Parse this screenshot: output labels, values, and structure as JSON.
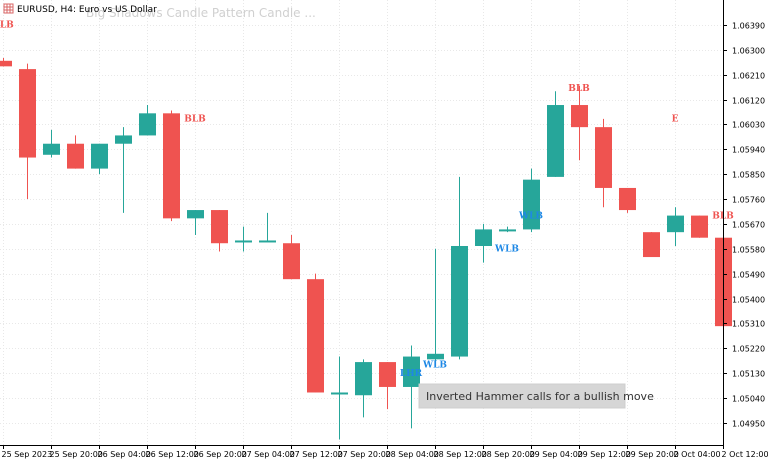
{
  "window": {
    "symbol_label": "EURUSD, H4:  Euro vs US Dollar",
    "watermark": "Big Shadows Candle Pattern Candle ..."
  },
  "tooltip": {
    "text": "Inverted Hammer calls for a bullish move"
  },
  "colors": {
    "bull": "#26a69a",
    "bear": "#ef5350",
    "grid": "#e8e8e8",
    "axis": "#000000",
    "text": "#000000",
    "label_bear": "#ef5350",
    "label_bull": "#1e88e5",
    "tooltip_bg": "#d6d6d6",
    "watermark": "#d0d0d0"
  },
  "chart_data": {
    "type": "candlestick",
    "title": "EURUSD, H4:  Euro vs US Dollar",
    "yaxis": {
      "range": [
        1.0487,
        1.0648
      ],
      "ticks": [
        "1.06390",
        "1.06300",
        "1.06210",
        "1.06120",
        "1.06030",
        "1.05940",
        "1.05850",
        "1.05760",
        "1.05670",
        "1.05580",
        "1.05490",
        "1.05400",
        "1.05310",
        "1.05220",
        "1.05130",
        "1.05040",
        "1.04950"
      ],
      "side": "right"
    },
    "xaxis": {
      "ticks": [
        {
          "label": "25 Sep 2023",
          "index": 0
        },
        {
          "label": "25 Sep 20:00",
          "index": 2
        },
        {
          "label": "26 Sep 04:00",
          "index": 4
        },
        {
          "label": "26 Sep 12:00",
          "index": 6
        },
        {
          "label": "26 Sep 20:00",
          "index": 8
        },
        {
          "label": "27 Sep 04:00",
          "index": 10
        },
        {
          "label": "27 Sep 12:00",
          "index": 12
        },
        {
          "label": "27 Sep 20:00",
          "index": 14
        },
        {
          "label": "28 Sep 04:00",
          "index": 16
        },
        {
          "label": "28 Sep 12:00",
          "index": 18
        },
        {
          "label": "28 Sep 20:00",
          "index": 20
        },
        {
          "label": "29 Sep 04:00",
          "index": 22
        },
        {
          "label": "29 Sep 12:00",
          "index": 24
        },
        {
          "label": "29 Sep 20:00",
          "index": 26
        },
        {
          "label": "2 Oct 04:00",
          "index": 28
        },
        {
          "label": "2 Oct 12:00",
          "index": 30
        }
      ]
    },
    "candles": [
      {
        "o": 1.0626,
        "h": 1.0627,
        "l": 1.0624,
        "c": 1.0624
      },
      {
        "o": 1.0623,
        "h": 1.0625,
        "l": 1.0576,
        "c": 1.0591
      },
      {
        "o": 1.0592,
        "h": 1.0601,
        "l": 1.0591,
        "c": 1.0596
      },
      {
        "o": 1.0596,
        "h": 1.0599,
        "l": 1.0587,
        "c": 1.0587
      },
      {
        "o": 1.0587,
        "h": 1.0596,
        "l": 1.0585,
        "c": 1.0596
      },
      {
        "o": 1.0596,
        "h": 1.0602,
        "l": 1.0571,
        "c": 1.0599
      },
      {
        "o": 1.0599,
        "h": 1.061,
        "l": 1.0599,
        "c": 1.0607
      },
      {
        "o": 1.0607,
        "h": 1.0608,
        "l": 1.0568,
        "c": 1.0569
      },
      {
        "o": 1.0569,
        "h": 1.0572,
        "l": 1.0563,
        "c": 1.0572
      },
      {
        "o": 1.0572,
        "h": 1.0572,
        "l": 1.0557,
        "c": 1.056
      },
      {
        "o": 1.0561,
        "h": 1.0566,
        "l": 1.0557,
        "c": 1.0561
      },
      {
        "o": 1.0561,
        "h": 1.0571,
        "l": 1.0561,
        "c": 1.0561
      },
      {
        "o": 1.056,
        "h": 1.0563,
        "l": 1.0547,
        "c": 1.0547
      },
      {
        "o": 1.0547,
        "h": 1.0549,
        "l": 1.0506,
        "c": 1.0506
      },
      {
        "o": 1.0506,
        "h": 1.0519,
        "l": 1.0489,
        "c": 1.0506
      },
      {
        "o": 1.0505,
        "h": 1.0518,
        "l": 1.0497,
        "c": 1.0517
      },
      {
        "o": 1.0517,
        "h": 1.0517,
        "l": 1.05,
        "c": 1.0508
      },
      {
        "o": 1.0508,
        "h": 1.0523,
        "l": 1.0493,
        "c": 1.0519
      },
      {
        "o": 1.0518,
        "h": 1.0558,
        "l": 1.0517,
        "c": 1.052
      },
      {
        "o": 1.0519,
        "h": 1.0584,
        "l": 1.0518,
        "c": 1.0559
      },
      {
        "o": 1.0559,
        "h": 1.0567,
        "l": 1.0553,
        "c": 1.0565
      },
      {
        "o": 1.0565,
        "h": 1.0566,
        "l": 1.0564,
        "c": 1.0565
      },
      {
        "o": 1.0565,
        "h": 1.0587,
        "l": 1.0564,
        "c": 1.0583
      },
      {
        "o": 1.0584,
        "h": 1.0615,
        "l": 1.0584,
        "c": 1.061
      },
      {
        "o": 1.061,
        "h": 1.0617,
        "l": 1.059,
        "c": 1.0602
      },
      {
        "o": 1.0602,
        "h": 1.0605,
        "l": 1.0573,
        "c": 1.058
      },
      {
        "o": 1.058,
        "h": 1.058,
        "l": 1.0571,
        "c": 1.0572
      },
      {
        "o": 1.0564,
        "h": 1.0564,
        "l": 1.0555,
        "c": 1.0555
      },
      {
        "o": 1.0564,
        "h": 1.0573,
        "l": 1.0559,
        "c": 1.057
      },
      {
        "o": 1.057,
        "h": 1.057,
        "l": 1.0562,
        "c": 1.0562
      },
      {
        "o": 1.0562,
        "h": 1.0563,
        "l": 1.0525,
        "c": 1.053
      }
    ],
    "markers": [
      {
        "text": "BLB",
        "candle": 0,
        "price": 1.0638,
        "color": "bear",
        "arrow": false
      },
      {
        "text": "BLB",
        "candle": 8,
        "price": 1.0604,
        "color": "bear",
        "arrow": false
      },
      {
        "text": "LHR",
        "candle": 17,
        "price": 1.0512,
        "color": "bull",
        "arrow": false
      },
      {
        "text": "WLB",
        "candle": 18,
        "price": 1.0515,
        "color": "bull",
        "arrow": false
      },
      {
        "text": "WLB",
        "candle": 21,
        "price": 1.0557,
        "color": "bull",
        "arrow": false
      },
      {
        "text": "WLB",
        "candle": 22,
        "price": 1.0569,
        "color": "bull",
        "arrow": false
      },
      {
        "text": "BLB",
        "candle": 24,
        "price": 1.0615,
        "color": "bear",
        "arrow": false
      },
      {
        "text": "E",
        "candle": 28,
        "price": 1.0604,
        "color": "bear",
        "arrow": false
      },
      {
        "text": "BLB",
        "candle": 30,
        "price": 1.0569,
        "color": "bear",
        "arrow": false
      }
    ]
  }
}
